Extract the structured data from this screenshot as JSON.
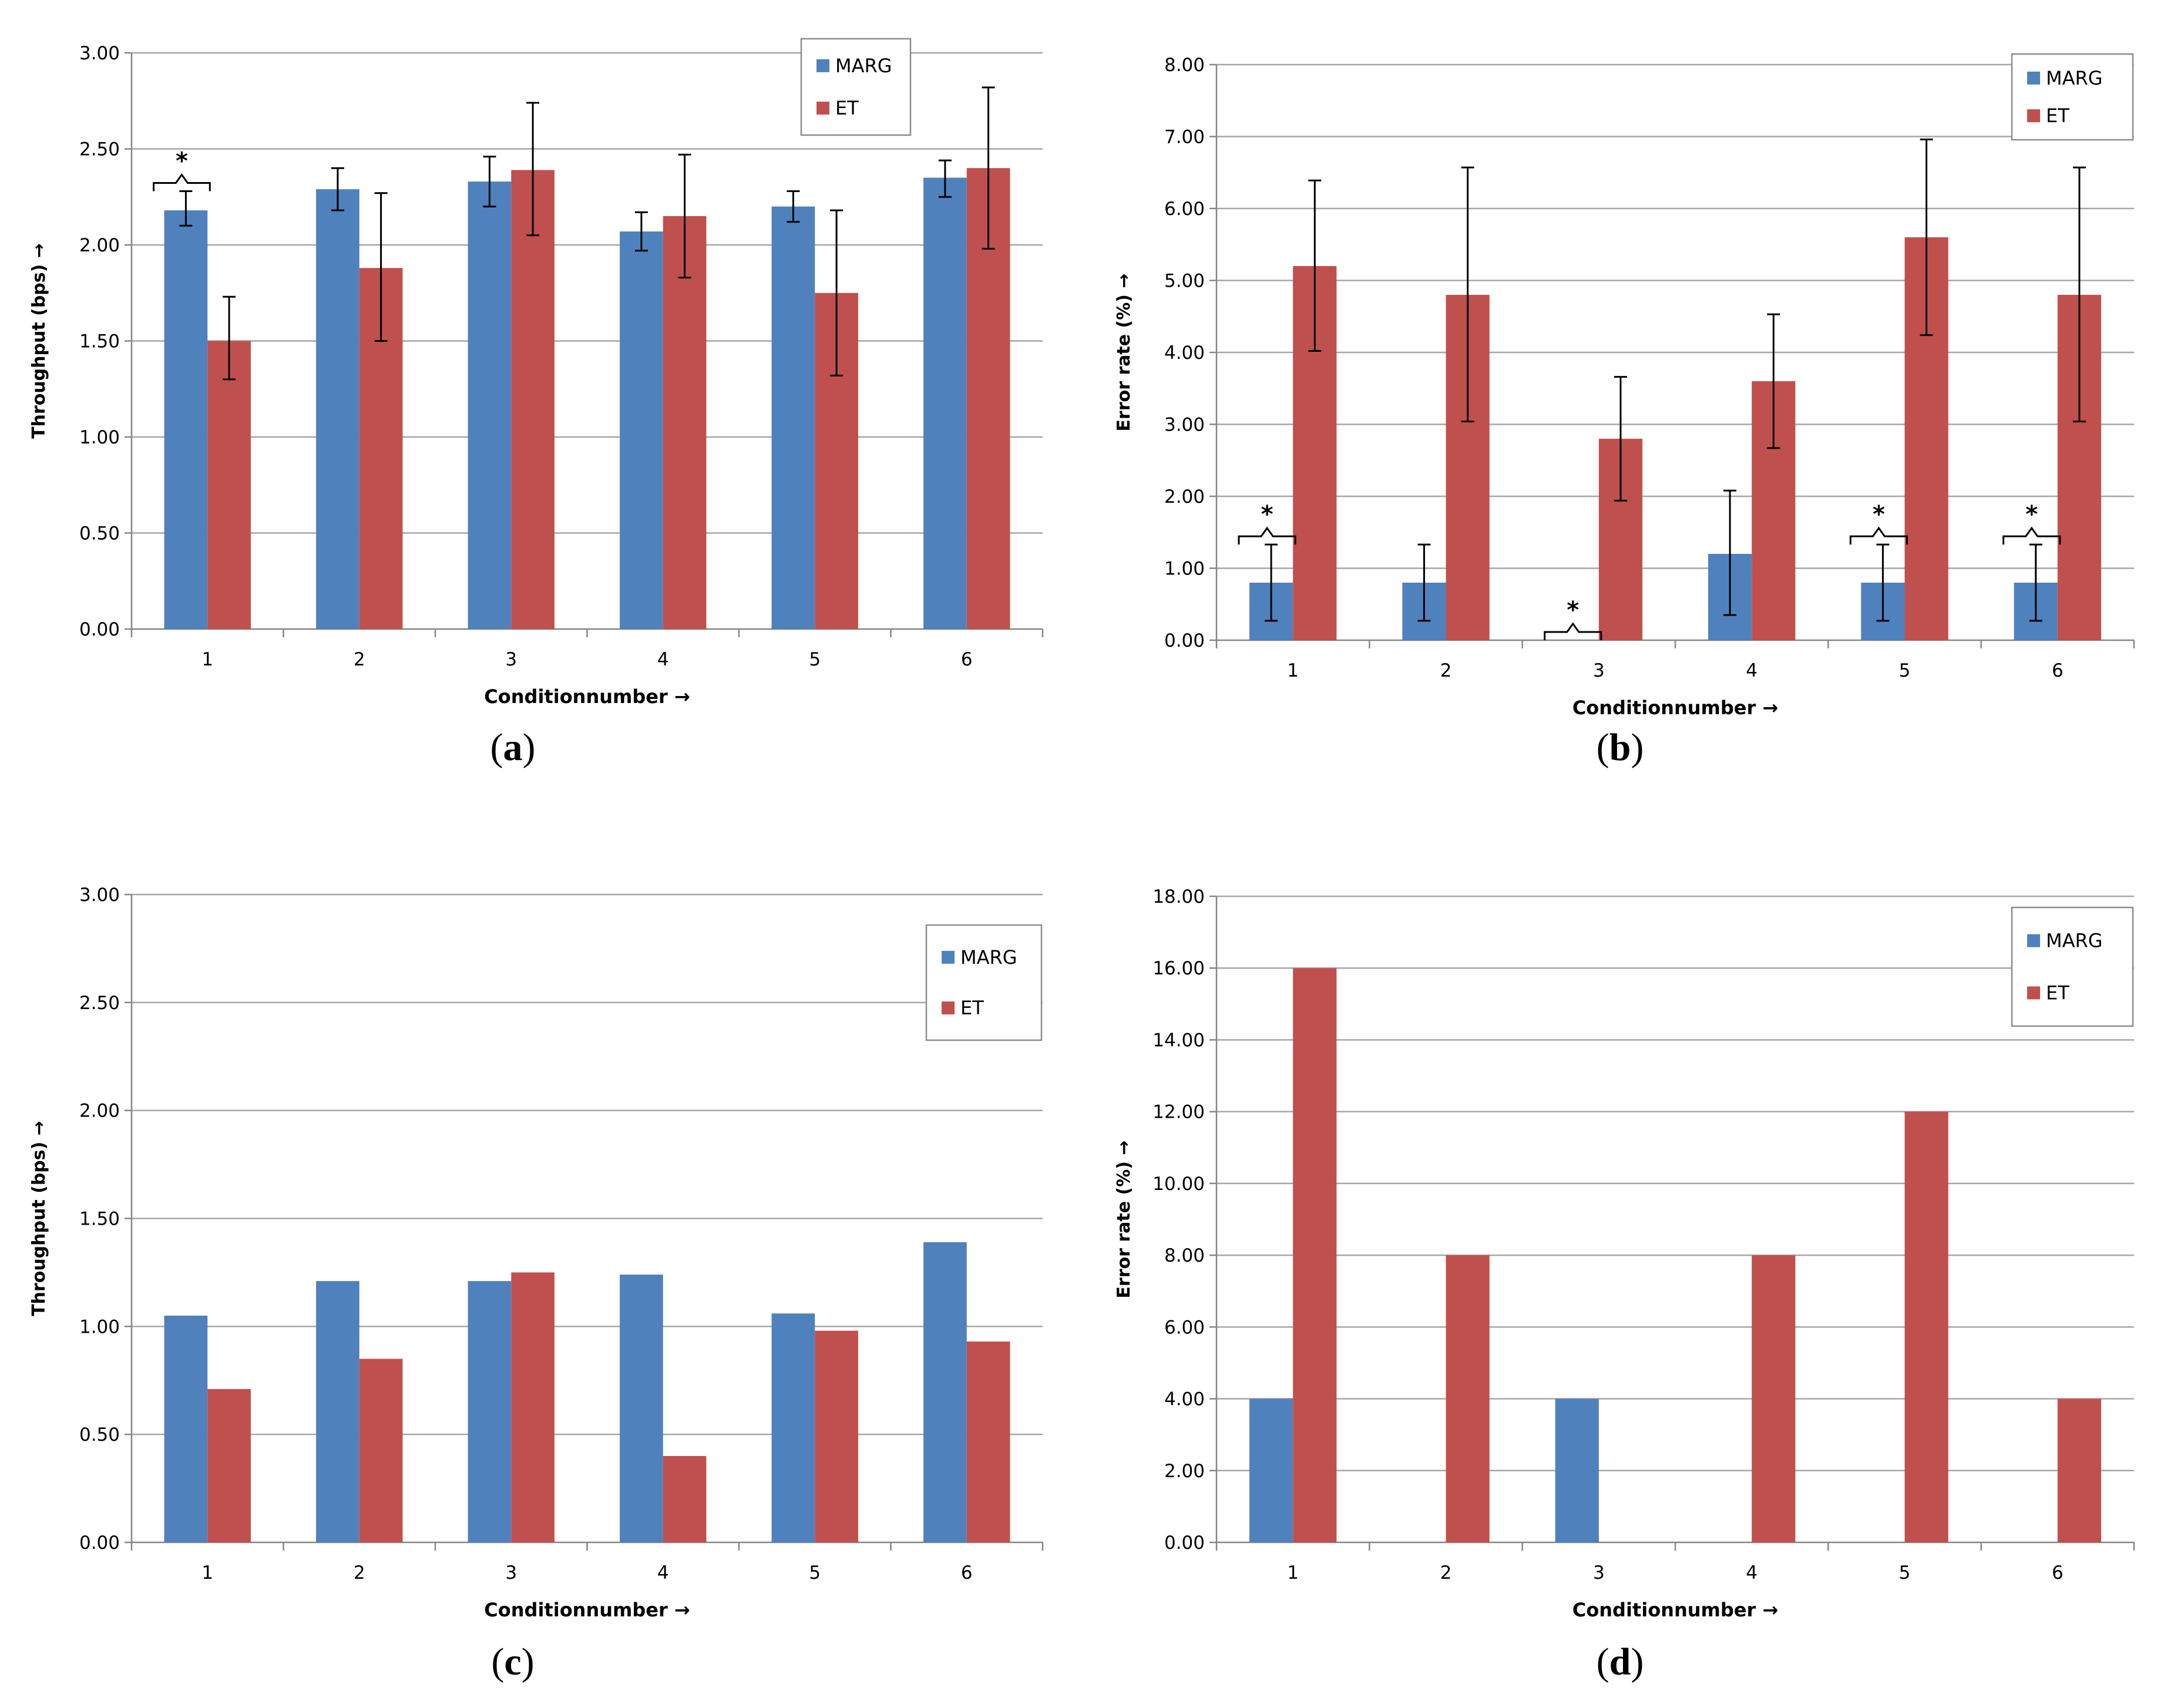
{
  "colors": {
    "marg": "#4f81bd",
    "et": "#c0504d",
    "grid": "#a6a6a6",
    "axis": "#868686",
    "text": "#000000"
  },
  "chart_data": [
    {
      "id": "a",
      "type": "bar",
      "caption_label": "a",
      "xlabel": "Conditionnumber →",
      "ylabel": "Throughput (bps) →",
      "ylim": [
        0,
        3
      ],
      "yticks": [
        "0.00",
        "0.50",
        "1.00",
        "1.50",
        "2.00",
        "2.50",
        "3.00"
      ],
      "ytick_values": [
        0,
        0.5,
        1,
        1.5,
        2,
        2.5,
        3
      ],
      "categories": [
        "1",
        "2",
        "3",
        "4",
        "5",
        "6"
      ],
      "legend": [
        "MARG",
        "ET"
      ],
      "series": [
        {
          "name": "MARG",
          "values": [
            2.18,
            2.29,
            2.33,
            2.07,
            2.2,
            2.35
          ],
          "err_low": [
            2.1,
            2.18,
            2.2,
            1.97,
            2.12,
            2.25
          ],
          "err_high": [
            2.28,
            2.4,
            2.46,
            2.17,
            2.28,
            2.44
          ]
        },
        {
          "name": "ET",
          "values": [
            1.5,
            1.88,
            2.39,
            2.15,
            1.75,
            2.4
          ],
          "err_low": [
            1.3,
            1.5,
            2.05,
            1.83,
            1.32,
            1.98
          ],
          "err_high": [
            1.73,
            2.27,
            2.74,
            2.47,
            2.18,
            2.82
          ]
        }
      ],
      "significance": [
        {
          "category_index": 0,
          "label": "*"
        }
      ]
    },
    {
      "id": "b",
      "type": "bar",
      "caption_label": "b",
      "xlabel": "Conditionnumber →",
      "ylabel": "Error rate (%) →",
      "ylim": [
        0,
        8
      ],
      "yticks": [
        "0.00",
        "1.00",
        "2.00",
        "3.00",
        "4.00",
        "5.00",
        "6.00",
        "7.00",
        "8.00"
      ],
      "ytick_values": [
        0,
        1,
        2,
        3,
        4,
        5,
        6,
        7,
        8
      ],
      "categories": [
        "1",
        "2",
        "3",
        "4",
        "5",
        "6"
      ],
      "legend": [
        "MARG",
        "ET"
      ],
      "series": [
        {
          "name": "MARG",
          "values": [
            0.8,
            0.8,
            0,
            1.2,
            0.8,
            0.8
          ],
          "err_low": [
            0.27,
            0.27,
            null,
            0.35,
            0.27,
            0.27
          ],
          "err_high": [
            1.33,
            1.33,
            null,
            2.08,
            1.33,
            1.33
          ]
        },
        {
          "name": "ET",
          "values": [
            5.2,
            4.8,
            2.8,
            3.6,
            5.6,
            4.8
          ],
          "err_low": [
            4.02,
            3.04,
            1.94,
            2.67,
            4.24,
            3.04
          ],
          "err_high": [
            6.39,
            6.57,
            3.66,
            4.53,
            6.96,
            6.57
          ]
        }
      ],
      "significance": [
        {
          "category_index": 0,
          "label": "*"
        },
        {
          "category_index": 2,
          "label": "*"
        },
        {
          "category_index": 4,
          "label": "*"
        },
        {
          "category_index": 5,
          "label": "*"
        }
      ]
    },
    {
      "id": "c",
      "type": "bar",
      "caption_label": "c",
      "xlabel": "Conditionnumber →",
      "ylabel": "Throughput (bps) →",
      "ylim": [
        0,
        3
      ],
      "yticks": [
        "0.00",
        "0.50",
        "1.00",
        "1.50",
        "2.00",
        "2.50",
        "3.00"
      ],
      "ytick_values": [
        0,
        0.5,
        1,
        1.5,
        2,
        2.5,
        3
      ],
      "categories": [
        "1",
        "2",
        "3",
        "4",
        "5",
        "6"
      ],
      "legend": [
        "MARG",
        "ET"
      ],
      "series": [
        {
          "name": "MARG",
          "values": [
            1.05,
            1.21,
            1.21,
            1.24,
            1.06,
            1.39
          ]
        },
        {
          "name": "ET",
          "values": [
            0.71,
            0.85,
            1.25,
            0.4,
            0.98,
            0.93
          ]
        }
      ],
      "significance": []
    },
    {
      "id": "d",
      "type": "bar",
      "caption_label": "d",
      "xlabel": "Conditionnumber →",
      "ylabel": "Error rate (%) →",
      "ylim": [
        0,
        18
      ],
      "yticks": [
        "0.00",
        "2.00",
        "4.00",
        "6.00",
        "8.00",
        "10.00",
        "12.00",
        "14.00",
        "16.00",
        "18.00"
      ],
      "ytick_values": [
        0,
        2,
        4,
        6,
        8,
        10,
        12,
        14,
        16,
        18
      ],
      "categories": [
        "1",
        "2",
        "3",
        "4",
        "5",
        "6"
      ],
      "legend": [
        "MARG",
        "ET"
      ],
      "series": [
        {
          "name": "MARG",
          "values": [
            4,
            0,
            4,
            0,
            0,
            0
          ]
        },
        {
          "name": "ET",
          "values": [
            16,
            8,
            0,
            8,
            12,
            4
          ]
        }
      ],
      "significance": []
    }
  ]
}
